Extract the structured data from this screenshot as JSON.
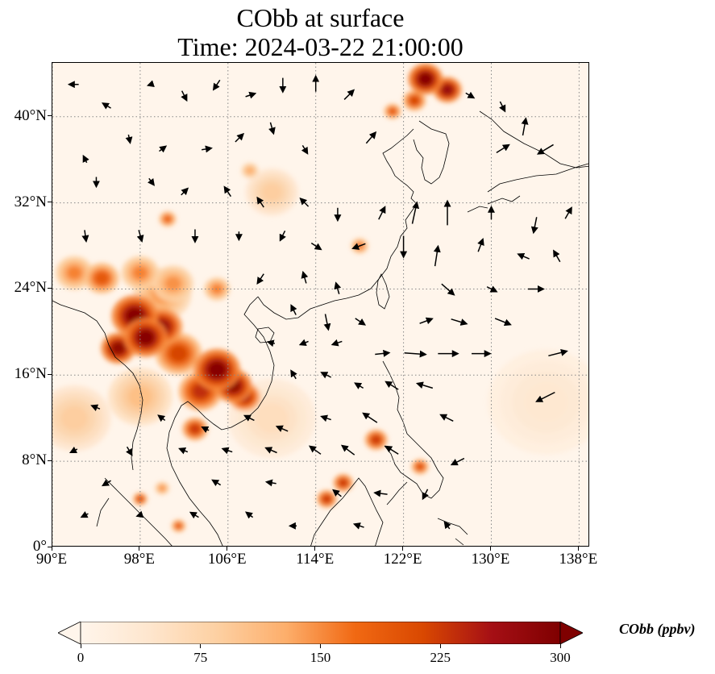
{
  "title": {
    "line1": "CObb at surface",
    "line2": "Time: 2024-03-22 21:00:00"
  },
  "map": {
    "lon_range": [
      90,
      139
    ],
    "lat_range": [
      0,
      45
    ],
    "lat_ticks": [
      {
        "value": 0,
        "label": "0°"
      },
      {
        "value": 8,
        "label": "8°N"
      },
      {
        "value": 16,
        "label": "16°N"
      },
      {
        "value": 24,
        "label": "24°N"
      },
      {
        "value": 32,
        "label": "32°N"
      },
      {
        "value": 40,
        "label": "40°N"
      }
    ],
    "lon_ticks": [
      {
        "value": 90,
        "label": "90°E"
      },
      {
        "value": 98,
        "label": "98°E"
      },
      {
        "value": 106,
        "label": "106°E"
      },
      {
        "value": 114,
        "label": "114°E"
      },
      {
        "value": 122,
        "label": "122°E"
      },
      {
        "value": 130,
        "label": "130°E"
      },
      {
        "value": 138,
        "label": "138°E"
      }
    ],
    "gridlines": true,
    "field_hotspots": [
      {
        "lon": 97.5,
        "lat": 21.5,
        "value": 300,
        "spread": 1.6
      },
      {
        "lon": 98.5,
        "lat": 19.5,
        "value": 300,
        "spread": 1.5
      },
      {
        "lon": 96.0,
        "lat": 18.5,
        "value": 290,
        "spread": 1.2
      },
      {
        "lon": 100.0,
        "lat": 20.5,
        "value": 280,
        "spread": 1.4
      },
      {
        "lon": 101.5,
        "lat": 18.0,
        "value": 220,
        "spread": 1.6
      },
      {
        "lon": 103.5,
        "lat": 14.5,
        "value": 240,
        "spread": 1.5
      },
      {
        "lon": 105.0,
        "lat": 16.5,
        "value": 300,
        "spread": 1.6
      },
      {
        "lon": 106.5,
        "lat": 15.0,
        "value": 290,
        "spread": 1.3
      },
      {
        "lon": 107.5,
        "lat": 14.0,
        "value": 260,
        "spread": 1.1
      },
      {
        "lon": 94.5,
        "lat": 25.0,
        "value": 200,
        "spread": 1.2
      },
      {
        "lon": 92.0,
        "lat": 25.5,
        "value": 160,
        "spread": 1.3
      },
      {
        "lon": 98.0,
        "lat": 25.5,
        "value": 160,
        "spread": 1.3
      },
      {
        "lon": 101.0,
        "lat": 24.5,
        "value": 150,
        "spread": 1.4
      },
      {
        "lon": 105.0,
        "lat": 24.0,
        "value": 160,
        "spread": 0.9
      },
      {
        "lon": 103.0,
        "lat": 11.0,
        "value": 230,
        "spread": 0.9
      },
      {
        "lon": 100.0,
        "lat": 23.5,
        "value": 140,
        "spread": 2.0
      },
      {
        "lon": 98.0,
        "lat": 14.0,
        "value": 110,
        "spread": 2.2
      },
      {
        "lon": 100.5,
        "lat": 30.5,
        "value": 190,
        "spread": 0.6
      },
      {
        "lon": 124.0,
        "lat": 43.5,
        "value": 300,
        "spread": 1.2
      },
      {
        "lon": 126.0,
        "lat": 42.5,
        "value": 280,
        "spread": 1.0
      },
      {
        "lon": 123.0,
        "lat": 41.5,
        "value": 220,
        "spread": 0.8
      },
      {
        "lon": 121.0,
        "lat": 40.5,
        "value": 200,
        "spread": 0.6
      },
      {
        "lon": 118.0,
        "lat": 28.0,
        "value": 170,
        "spread": 0.6
      },
      {
        "lon": 110.0,
        "lat": 33.0,
        "value": 90,
        "spread": 1.8
      },
      {
        "lon": 108.0,
        "lat": 35.0,
        "value": 130,
        "spread": 0.6
      },
      {
        "lon": 119.5,
        "lat": 10.0,
        "value": 230,
        "spread": 0.8
      },
      {
        "lon": 116.5,
        "lat": 6.0,
        "value": 230,
        "spread": 0.7
      },
      {
        "lon": 115.0,
        "lat": 4.5,
        "value": 230,
        "spread": 0.7
      },
      {
        "lon": 123.5,
        "lat": 7.5,
        "value": 210,
        "spread": 0.6
      },
      {
        "lon": 98.0,
        "lat": 4.5,
        "value": 220,
        "spread": 0.5
      },
      {
        "lon": 101.5,
        "lat": 2.0,
        "value": 200,
        "spread": 0.5
      },
      {
        "lon": 100.0,
        "lat": 5.5,
        "value": 150,
        "spread": 0.5
      },
      {
        "lon": 92.0,
        "lat": 12.0,
        "value": 90,
        "spread": 2.5
      },
      {
        "lon": 110.0,
        "lat": 12.0,
        "value": 60,
        "spread": 3.0
      },
      {
        "lon": 135.0,
        "lat": 13.5,
        "value": 40,
        "spread": 4.0
      }
    ],
    "wind_vectors": [
      {
        "lon": 92,
        "lat": 43,
        "u": -0.6,
        "v": 0.0
      },
      {
        "lon": 95,
        "lat": 41,
        "u": -0.5,
        "v": 0.3
      },
      {
        "lon": 99,
        "lat": 43,
        "u": -0.3,
        "v": -0.1
      },
      {
        "lon": 102,
        "lat": 42,
        "u": 0.3,
        "v": -0.6
      },
      {
        "lon": 105,
        "lat": 43,
        "u": -0.4,
        "v": -0.6
      },
      {
        "lon": 108,
        "lat": 42,
        "u": 0.6,
        "v": 0.2
      },
      {
        "lon": 111,
        "lat": 43,
        "u": 0.0,
        "v": -0.9
      },
      {
        "lon": 114,
        "lat": 43,
        "u": 0.0,
        "v": 1.0
      },
      {
        "lon": 117,
        "lat": 42,
        "u": 0.6,
        "v": 0.6
      },
      {
        "lon": 128,
        "lat": 42,
        "u": 0.5,
        "v": -0.3
      },
      {
        "lon": 131,
        "lat": 41,
        "u": 0.3,
        "v": -0.6
      },
      {
        "lon": 133,
        "lat": 39,
        "u": 0.2,
        "v": 1.1
      },
      {
        "lon": 135,
        "lat": 37,
        "u": -1.0,
        "v": -0.6
      },
      {
        "lon": 131,
        "lat": 37,
        "u": 0.8,
        "v": 0.5
      },
      {
        "lon": 93,
        "lat": 36,
        "u": -0.2,
        "v": 0.4
      },
      {
        "lon": 97,
        "lat": 38,
        "u": 0.1,
        "v": -0.5
      },
      {
        "lon": 100,
        "lat": 37,
        "u": 0.4,
        "v": 0.3
      },
      {
        "lon": 104,
        "lat": 37,
        "u": 0.6,
        "v": 0.1
      },
      {
        "lon": 107,
        "lat": 38,
        "u": 0.5,
        "v": 0.5
      },
      {
        "lon": 110,
        "lat": 39,
        "u": 0.2,
        "v": -0.7
      },
      {
        "lon": 113,
        "lat": 37,
        "u": 0.3,
        "v": -0.5
      },
      {
        "lon": 119,
        "lat": 38,
        "u": 0.6,
        "v": 0.7
      },
      {
        "lon": 94,
        "lat": 34,
        "u": 0.0,
        "v": -0.6
      },
      {
        "lon": 99,
        "lat": 34,
        "u": 0.3,
        "v": -0.4
      },
      {
        "lon": 102,
        "lat": 33,
        "u": 0.4,
        "v": 0.4
      },
      {
        "lon": 106,
        "lat": 33,
        "u": -0.4,
        "v": 0.6
      },
      {
        "lon": 109,
        "lat": 32,
        "u": -0.4,
        "v": 0.6
      },
      {
        "lon": 113,
        "lat": 32,
        "u": -0.5,
        "v": 0.5
      },
      {
        "lon": 116,
        "lat": 31,
        "u": 0.0,
        "v": -0.8
      },
      {
        "lon": 120,
        "lat": 31,
        "u": 0.4,
        "v": 0.8
      },
      {
        "lon": 123,
        "lat": 31,
        "u": 0.3,
        "v": 1.4
      },
      {
        "lon": 126,
        "lat": 31,
        "u": 0.0,
        "v": 1.6
      },
      {
        "lon": 130,
        "lat": 31,
        "u": 0.0,
        "v": 0.8
      },
      {
        "lon": 134,
        "lat": 30,
        "u": -0.2,
        "v": -1.0
      },
      {
        "lon": 137,
        "lat": 31,
        "u": 0.4,
        "v": 0.7
      },
      {
        "lon": 93,
        "lat": 29,
        "u": 0.1,
        "v": -0.7
      },
      {
        "lon": 98,
        "lat": 29,
        "u": 0.2,
        "v": -0.7
      },
      {
        "lon": 103,
        "lat": 29,
        "u": 0.0,
        "v": -0.8
      },
      {
        "lon": 107,
        "lat": 29,
        "u": 0.0,
        "v": -0.5
      },
      {
        "lon": 111,
        "lat": 29,
        "u": -0.3,
        "v": -0.6
      },
      {
        "lon": 114,
        "lat": 28,
        "u": 0.6,
        "v": -0.4
      },
      {
        "lon": 118,
        "lat": 28,
        "u": -0.8,
        "v": -0.3
      },
      {
        "lon": 122,
        "lat": 28,
        "u": 0.0,
        "v": -1.4
      },
      {
        "lon": 125,
        "lat": 27,
        "u": 0.2,
        "v": 1.3
      },
      {
        "lon": 129,
        "lat": 28,
        "u": 0.3,
        "v": 0.8
      },
      {
        "lon": 133,
        "lat": 27,
        "u": -0.7,
        "v": 0.3
      },
      {
        "lon": 136,
        "lat": 27,
        "u": -0.4,
        "v": 0.7
      },
      {
        "lon": 109,
        "lat": 25,
        "u": -0.4,
        "v": -0.6
      },
      {
        "lon": 113,
        "lat": 25,
        "u": -0.2,
        "v": 0.7
      },
      {
        "lon": 116,
        "lat": 24,
        "u": -0.2,
        "v": 0.7
      },
      {
        "lon": 126,
        "lat": 24,
        "u": 0.8,
        "v": -0.7
      },
      {
        "lon": 130,
        "lat": 24,
        "u": 0.6,
        "v": -0.3
      },
      {
        "lon": 134,
        "lat": 24,
        "u": 1.0,
        "v": 0.0
      },
      {
        "lon": 112,
        "lat": 22,
        "u": -0.3,
        "v": 0.6
      },
      {
        "lon": 115,
        "lat": 21,
        "u": 0.2,
        "v": -1.0
      },
      {
        "lon": 118,
        "lat": 21,
        "u": 0.6,
        "v": -0.4
      },
      {
        "lon": 124,
        "lat": 21,
        "u": 0.8,
        "v": 0.3
      },
      {
        "lon": 127,
        "lat": 21,
        "u": 1.0,
        "v": -0.3
      },
      {
        "lon": 131,
        "lat": 21,
        "u": 1.0,
        "v": -0.4
      },
      {
        "lon": 110,
        "lat": 19,
        "u": -0.4,
        "v": 0.1
      },
      {
        "lon": 113,
        "lat": 19,
        "u": -0.5,
        "v": -0.2
      },
      {
        "lon": 116,
        "lat": 19,
        "u": -0.6,
        "v": -0.2
      },
      {
        "lon": 120,
        "lat": 18,
        "u": 0.9,
        "v": 0.1
      },
      {
        "lon": 123,
        "lat": 18,
        "u": 1.4,
        "v": -0.1
      },
      {
        "lon": 126,
        "lat": 18,
        "u": 1.3,
        "v": 0.0
      },
      {
        "lon": 129,
        "lat": 18,
        "u": 1.2,
        "v": 0.0
      },
      {
        "lon": 136,
        "lat": 18,
        "u": 1.2,
        "v": 0.3
      },
      {
        "lon": 112,
        "lat": 16,
        "u": -0.3,
        "v": 0.5
      },
      {
        "lon": 115,
        "lat": 16,
        "u": -0.6,
        "v": 0.3
      },
      {
        "lon": 118,
        "lat": 15,
        "u": -0.5,
        "v": 0.3
      },
      {
        "lon": 121,
        "lat": 15,
        "u": -0.8,
        "v": 0.5
      },
      {
        "lon": 124,
        "lat": 15,
        "u": -1.0,
        "v": 0.3
      },
      {
        "lon": 135,
        "lat": 14,
        "u": -1.2,
        "v": -0.6
      },
      {
        "lon": 94,
        "lat": 13,
        "u": -0.5,
        "v": 0.2
      },
      {
        "lon": 100,
        "lat": 12,
        "u": -0.4,
        "v": 0.3
      },
      {
        "lon": 104,
        "lat": 11,
        "u": -0.4,
        "v": 0.2
      },
      {
        "lon": 108,
        "lat": 12,
        "u": -0.6,
        "v": 0.3
      },
      {
        "lon": 111,
        "lat": 11,
        "u": -0.7,
        "v": 0.3
      },
      {
        "lon": 115,
        "lat": 12,
        "u": -0.6,
        "v": 0.2
      },
      {
        "lon": 119,
        "lat": 12,
        "u": -0.9,
        "v": 0.6
      },
      {
        "lon": 126,
        "lat": 12,
        "u": -0.8,
        "v": 0.4
      },
      {
        "lon": 92,
        "lat": 9,
        "u": -0.4,
        "v": -0.2
      },
      {
        "lon": 97,
        "lat": 9,
        "u": 0.3,
        "v": -0.5
      },
      {
        "lon": 102,
        "lat": 9,
        "u": -0.5,
        "v": 0.2
      },
      {
        "lon": 106,
        "lat": 9,
        "u": -0.6,
        "v": 0.2
      },
      {
        "lon": 110,
        "lat": 9,
        "u": -0.7,
        "v": 0.3
      },
      {
        "lon": 114,
        "lat": 9,
        "u": -0.7,
        "v": 0.5
      },
      {
        "lon": 117,
        "lat": 9,
        "u": -0.8,
        "v": 0.6
      },
      {
        "lon": 121,
        "lat": 9,
        "u": -0.8,
        "v": 0.5
      },
      {
        "lon": 127,
        "lat": 8,
        "u": -0.8,
        "v": -0.4
      },
      {
        "lon": 95,
        "lat": 6,
        "u": -0.5,
        "v": -0.3
      },
      {
        "lon": 105,
        "lat": 6,
        "u": -0.5,
        "v": 0.3
      },
      {
        "lon": 110,
        "lat": 6,
        "u": -0.6,
        "v": 0.1
      },
      {
        "lon": 116,
        "lat": 5,
        "u": -0.5,
        "v": 0.4
      },
      {
        "lon": 120,
        "lat": 5,
        "u": -0.8,
        "v": 0.1
      },
      {
        "lon": 124,
        "lat": 5,
        "u": -0.3,
        "v": -0.6
      },
      {
        "lon": 93,
        "lat": 3,
        "u": -0.4,
        "v": -0.2
      },
      {
        "lon": 98,
        "lat": 3,
        "u": -0.3,
        "v": -0.1
      },
      {
        "lon": 103,
        "lat": 3,
        "u": -0.5,
        "v": 0.3
      },
      {
        "lon": 108,
        "lat": 3,
        "u": -0.4,
        "v": 0.3
      },
      {
        "lon": 112,
        "lat": 2,
        "u": -0.4,
        "v": 0.0
      },
      {
        "lon": 118,
        "lat": 2,
        "u": -0.6,
        "v": 0.2
      },
      {
        "lon": 126,
        "lat": 2,
        "u": -0.3,
        "v": 0.4
      }
    ]
  },
  "colorbar": {
    "title": "CObb (ppbv)",
    "min": 0,
    "max": 300,
    "ticks": [
      {
        "value": 0,
        "label": "0"
      },
      {
        "value": 75,
        "label": "75"
      },
      {
        "value": 150,
        "label": "150"
      },
      {
        "value": 225,
        "label": "225"
      },
      {
        "value": 300,
        "label": "300"
      }
    ],
    "colormap": [
      "#fff5eb",
      "#fee6ce",
      "#fdd0a2",
      "#fdae6b",
      "#f16913",
      "#d94801",
      "#a50f15",
      "#7f0000"
    ],
    "extend": "both"
  },
  "colors": {
    "coastline": "#000000",
    "gridline": "#888888",
    "wind_arrow": "#000000"
  }
}
